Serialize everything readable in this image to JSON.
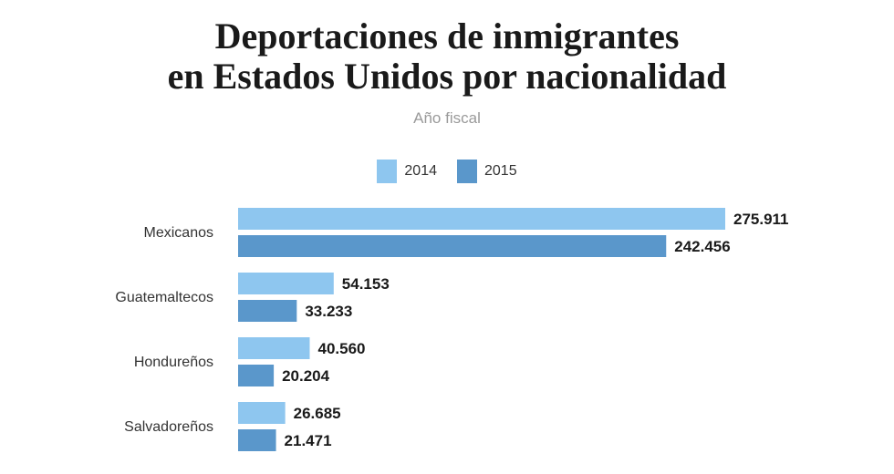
{
  "chart_data": {
    "type": "bar",
    "orientation": "horizontal",
    "title_lines": [
      "Deportaciones de inmigrantes",
      "en Estados Unidos por nacionalidad"
    ],
    "subtitle": "Año fiscal",
    "categories": [
      "Mexicanos",
      "Guatemaltecos",
      "Hondureños",
      "Salvadoreños"
    ],
    "series": [
      {
        "name": "2014",
        "color": "#8ec6ef",
        "values": [
          275911,
          54153,
          40560,
          26685
        ],
        "labels": [
          "275.911",
          "54.153",
          "40.560",
          "26.685"
        ]
      },
      {
        "name": "2015",
        "color": "#5a97cb",
        "values": [
          242456,
          33233,
          20204,
          21471
        ],
        "labels": [
          "242.456",
          "33.233",
          "20.204",
          "21.471"
        ]
      }
    ],
    "xlim": [
      0,
      275911
    ],
    "legend_position": "top-center",
    "grid": false
  }
}
